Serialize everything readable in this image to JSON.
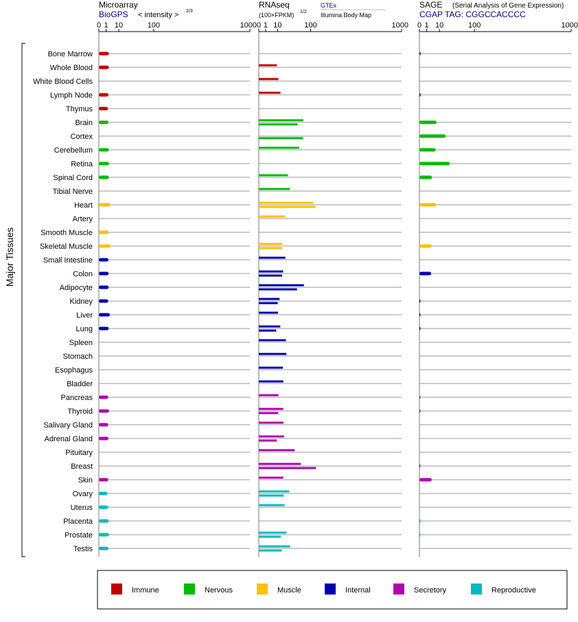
{
  "panels": {
    "microarray": {
      "title": "Microarray",
      "link": "BioGPS",
      "metric_prefix": "< intensity >",
      "metric_exp": "2/3"
    },
    "rnaseq": {
      "title": "RNAseq",
      "unit": "(100×FPKM)",
      "unit_exp": "1/2",
      "source_top": "GTEx",
      "source_bottom": "Illumina Body Map"
    },
    "sage": {
      "title": "SAGE",
      "subtitle": "(Serial Analysis of Gene Expression)",
      "tag": "CGAP TAG: CGGCCACCCC"
    }
  },
  "y_group_label": "Major Tissues",
  "legend": [
    {
      "label": "Immune",
      "color": "#c00000"
    },
    {
      "label": "Nervous",
      "color": "#00bb00"
    },
    {
      "label": "Muscle",
      "color": "#ffc000"
    },
    {
      "label": "Internal",
      "color": "#0000b0"
    },
    {
      "label": "Secretory",
      "color": "#b000b0"
    },
    {
      "label": "Reproductive",
      "color": "#00bbbb"
    }
  ],
  "chart_data": {
    "type": "bar",
    "x_scale": "power 1/2-ish (tick labels 0, 1, 10, 100, 1000)",
    "x_ticks": [
      "0",
      "1",
      "10",
      "100",
      "1000"
    ],
    "categories": [
      "Bone Marrow",
      "Whole Blood",
      "White Blood Cells",
      "Lymph Node",
      "Thymus",
      "Brain",
      "Cortex",
      "Cerebellum",
      "Retina",
      "Spinal Cord",
      "Tibial Nerve",
      "Heart",
      "Artery",
      "Smooth Muscle",
      "Skeletal Muscle",
      "Small Intestine",
      "Colon",
      "Adipocyte",
      "Kidney",
      "Liver",
      "Lung",
      "Spleen",
      "Stomach",
      "Esophagus",
      "Bladder",
      "Pancreas",
      "Thyroid",
      "Salivary Gland",
      "Adrenal Gland",
      "Pituitary",
      "Breast",
      "Skin",
      "Ovary",
      "Uterus",
      "Placenta",
      "Prostate",
      "Testis"
    ],
    "category_group": [
      "Immune",
      "Immune",
      "Immune",
      "Immune",
      "Immune",
      "Nervous",
      "Nervous",
      "Nervous",
      "Nervous",
      "Nervous",
      "Nervous",
      "Muscle",
      "Muscle",
      "Muscle",
      "Muscle",
      "Internal",
      "Internal",
      "Internal",
      "Internal",
      "Internal",
      "Internal",
      "Internal",
      "Internal",
      "Internal",
      "Internal",
      "Secretory",
      "Secretory",
      "Secretory",
      "Secretory",
      "Secretory",
      "Secretory",
      "Secretory",
      "Reproductive",
      "Reproductive",
      "Reproductive",
      "Reproductive",
      "Reproductive"
    ],
    "series": [
      {
        "name": "Microarray",
        "values": [
          2.1,
          2.1,
          null,
          1.9,
          1.7,
          1.9,
          null,
          2.1,
          2.2,
          2.1,
          null,
          3.0,
          null,
          2.1,
          2.9,
          1.9,
          2.0,
          2.0,
          1.8,
          2.6,
          2.0,
          null,
          null,
          null,
          null,
          1.8,
          2.2,
          1.8,
          1.9,
          null,
          null,
          1.8,
          1.5,
          1.8,
          2.0,
          2.2,
          1.9
        ]
      },
      {
        "name": "GTEx",
        "values": [
          null,
          9.2,
          11.0,
          13.8,
          null,
          71,
          null,
          57,
          null,
          27,
          31,
          112,
          21,
          null,
          16.5,
          22,
          18,
          73,
          12.6,
          10.4,
          13.5,
          23,
          24,
          17.4,
          18.2,
          11.1,
          18.2,
          18.5,
          19.6,
          43.5,
          62,
          18.2,
          30,
          20.5,
          null,
          24,
          32
        ]
      },
      {
        "name": "Illumina Body Map",
        "values": [
          null,
          null,
          null,
          null,
          null,
          52,
          70,
          null,
          null,
          null,
          null,
          123,
          null,
          null,
          16.5,
          null,
          16.2,
          50,
          10.2,
          null,
          8.4,
          null,
          null,
          null,
          null,
          null,
          10.6,
          null,
          9.1,
          null,
          125,
          null,
          19.1,
          null,
          null,
          14.3,
          15.7
        ]
      },
      {
        "name": "SAGE",
        "values": [
          0.02,
          null,
          null,
          0.02,
          null,
          7.1,
          18.5,
          6.3,
          25.7,
          3.5,
          null,
          6.5,
          null,
          null,
          3.2,
          null,
          3.0,
          null,
          0.01,
          0.01,
          0.01,
          null,
          null,
          null,
          null,
          0.01,
          0.01,
          null,
          null,
          null,
          0.01,
          3.3,
          null,
          null,
          0.01,
          0.01,
          null
        ]
      }
    ]
  }
}
